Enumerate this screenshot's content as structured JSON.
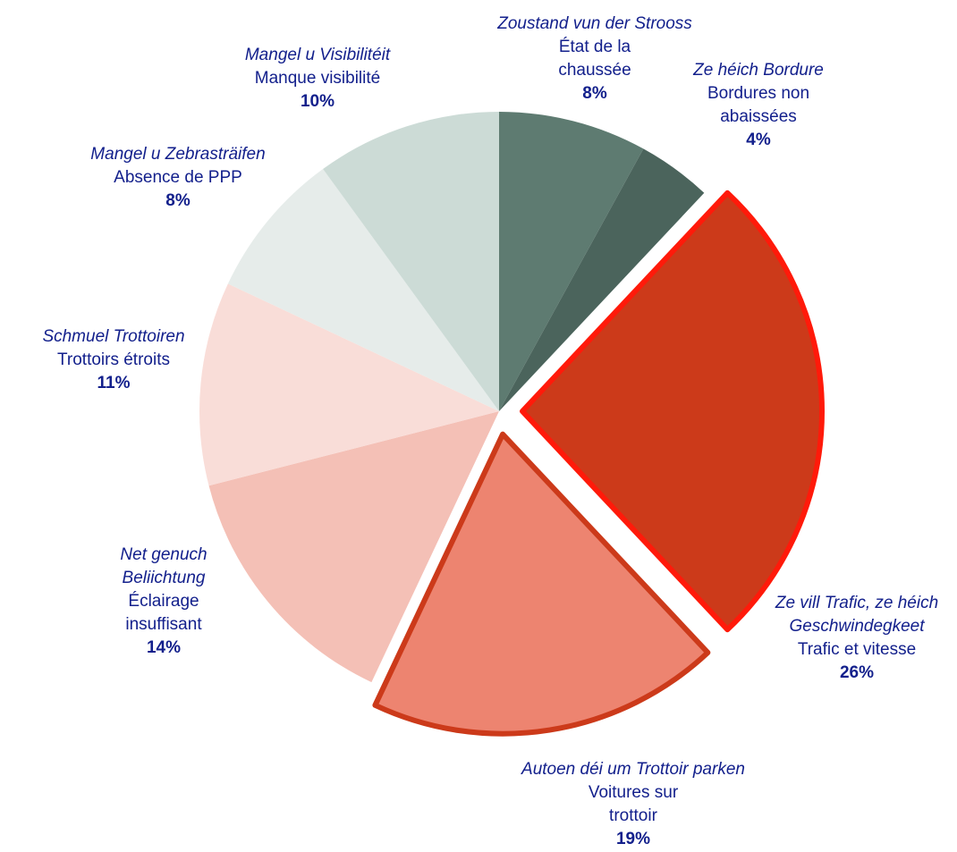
{
  "chart_data": {
    "type": "pie",
    "categories_lb": [
      "Zoustand vun der Strooss",
      "Ze héich Bordure",
      "Ze vill Trafic, ze héich Geschwindegkeet",
      "Autoen déi um Trottoir parken",
      "Net genuch Beliichtung",
      "Schmuel Trottoiren",
      "Mangel u Zebrasträifen",
      "Mangel u Visibilitéit"
    ],
    "categories": [
      "État de la chaussée",
      "Bordures non abaissées",
      "Trafic et vitesse",
      "Voitures sur trottoir",
      "Éclairage insuffisant",
      "Trottoirs étroits",
      "Absence de PPP",
      "Manque visibilité"
    ],
    "values": [
      8,
      4,
      26,
      19,
      14,
      11,
      8,
      10
    ],
    "value_labels": [
      "8%",
      "4%",
      "26%",
      "19%",
      "14%",
      "11%",
      "8%",
      "10%"
    ],
    "colors": [
      "#5e7b71",
      "#4b645c",
      "#cc3a1a",
      "#ed8470",
      "#f4c0b6",
      "#f9ddd8",
      "#e6ecea",
      "#ccdbd6"
    ],
    "exploded": [
      false,
      false,
      true,
      true,
      false,
      false,
      false,
      false
    ],
    "outline_colors": [
      null,
      null,
      "#ff1a0a",
      "#cc3a1a",
      null,
      null,
      null,
      null
    ]
  }
}
